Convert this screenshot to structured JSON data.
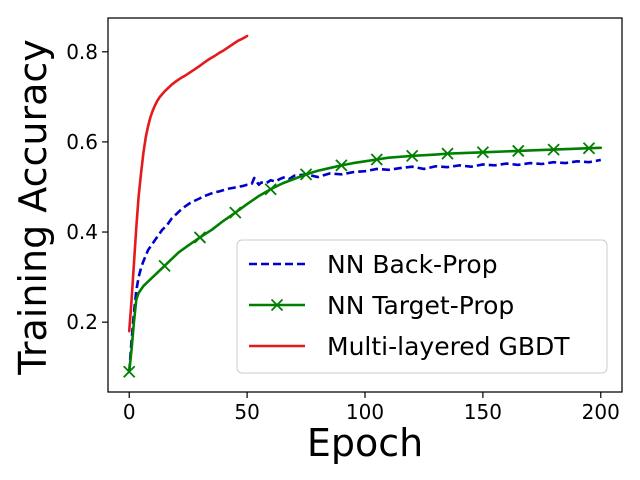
{
  "chart_data": {
    "type": "line",
    "xlabel": "Epoch",
    "ylabel": "Training Accuracy",
    "xlim": [
      -9,
      209
    ],
    "ylim": [
      0.045,
      0.875
    ],
    "xticks": [
      0,
      50,
      100,
      150,
      200
    ],
    "yticks": [
      0.2,
      0.4,
      0.6,
      0.8
    ],
    "xtick_labels": [
      "0",
      "50",
      "100",
      "150",
      "200"
    ],
    "ytick_labels": [
      "0.2",
      "0.4",
      "0.6",
      "0.8"
    ],
    "grid": false,
    "legend_position": "lower-right",
    "series": [
      {
        "name": "NN Back-Prop",
        "color": "#0000cc",
        "style": "dashed",
        "marker": "none",
        "x": [
          0,
          1,
          2,
          3,
          4,
          5,
          6,
          8,
          10,
          12,
          14,
          16,
          18,
          20,
          22,
          24,
          26,
          28,
          30,
          32,
          34,
          36,
          38,
          40,
          42,
          44,
          46,
          48,
          50,
          52,
          53,
          54,
          55,
          56,
          58,
          60,
          62,
          64,
          66,
          68,
          70,
          75,
          80,
          85,
          90,
          95,
          100,
          105,
          110,
          115,
          120,
          125,
          130,
          135,
          140,
          145,
          150,
          155,
          160,
          165,
          170,
          175,
          180,
          185,
          190,
          195,
          200
        ],
        "y": [
          0.09,
          0.16,
          0.22,
          0.27,
          0.3,
          0.32,
          0.335,
          0.36,
          0.375,
          0.39,
          0.405,
          0.415,
          0.43,
          0.44,
          0.45,
          0.458,
          0.465,
          0.47,
          0.475,
          0.48,
          0.484,
          0.488,
          0.49,
          0.493,
          0.496,
          0.498,
          0.5,
          0.502,
          0.505,
          0.507,
          0.52,
          0.512,
          0.505,
          0.51,
          0.508,
          0.515,
          0.512,
          0.518,
          0.522,
          0.518,
          0.525,
          0.528,
          0.522,
          0.53,
          0.528,
          0.533,
          0.535,
          0.54,
          0.538,
          0.542,
          0.545,
          0.54,
          0.546,
          0.544,
          0.548,
          0.545,
          0.55,
          0.548,
          0.552,
          0.549,
          0.553,
          0.551,
          0.555,
          0.553,
          0.557,
          0.555,
          0.56
        ]
      },
      {
        "name": "NN Target-Prop",
        "color": "#007f00",
        "style": "solid",
        "marker": "x",
        "marker_every": 15,
        "x": [
          0,
          1,
          2,
          3,
          4,
          6,
          8,
          10,
          12,
          15,
          18,
          21,
          25,
          30,
          35,
          40,
          45,
          50,
          55,
          60,
          65,
          70,
          75,
          80,
          85,
          90,
          95,
          100,
          105,
          110,
          120,
          130,
          135,
          140,
          150,
          160,
          165,
          170,
          180,
          190,
          195,
          200
        ],
        "y": [
          0.09,
          0.14,
          0.2,
          0.25,
          0.265,
          0.28,
          0.29,
          0.3,
          0.31,
          0.325,
          0.34,
          0.355,
          0.37,
          0.388,
          0.405,
          0.425,
          0.443,
          0.462,
          0.48,
          0.495,
          0.508,
          0.518,
          0.528,
          0.536,
          0.542,
          0.548,
          0.553,
          0.557,
          0.561,
          0.565,
          0.569,
          0.572,
          0.574,
          0.575,
          0.577,
          0.579,
          0.58,
          0.581,
          0.583,
          0.585,
          0.586,
          0.587
        ]
      },
      {
        "name": "Multi-layered GBDT",
        "color": "#e41a1c",
        "style": "solid",
        "marker": "none",
        "x": [
          0,
          1,
          2,
          3,
          4,
          5,
          6,
          7,
          8,
          9,
          10,
          11,
          12,
          13,
          14,
          15,
          16,
          18,
          20,
          22,
          24,
          26,
          28,
          30,
          32,
          34,
          36,
          38,
          40,
          42,
          44,
          46,
          48,
          50
        ],
        "y": [
          0.18,
          0.25,
          0.33,
          0.41,
          0.48,
          0.53,
          0.575,
          0.61,
          0.635,
          0.655,
          0.67,
          0.682,
          0.692,
          0.7,
          0.706,
          0.712,
          0.717,
          0.727,
          0.735,
          0.742,
          0.748,
          0.755,
          0.762,
          0.769,
          0.777,
          0.784,
          0.79,
          0.797,
          0.803,
          0.81,
          0.817,
          0.824,
          0.829,
          0.835
        ]
      }
    ]
  }
}
